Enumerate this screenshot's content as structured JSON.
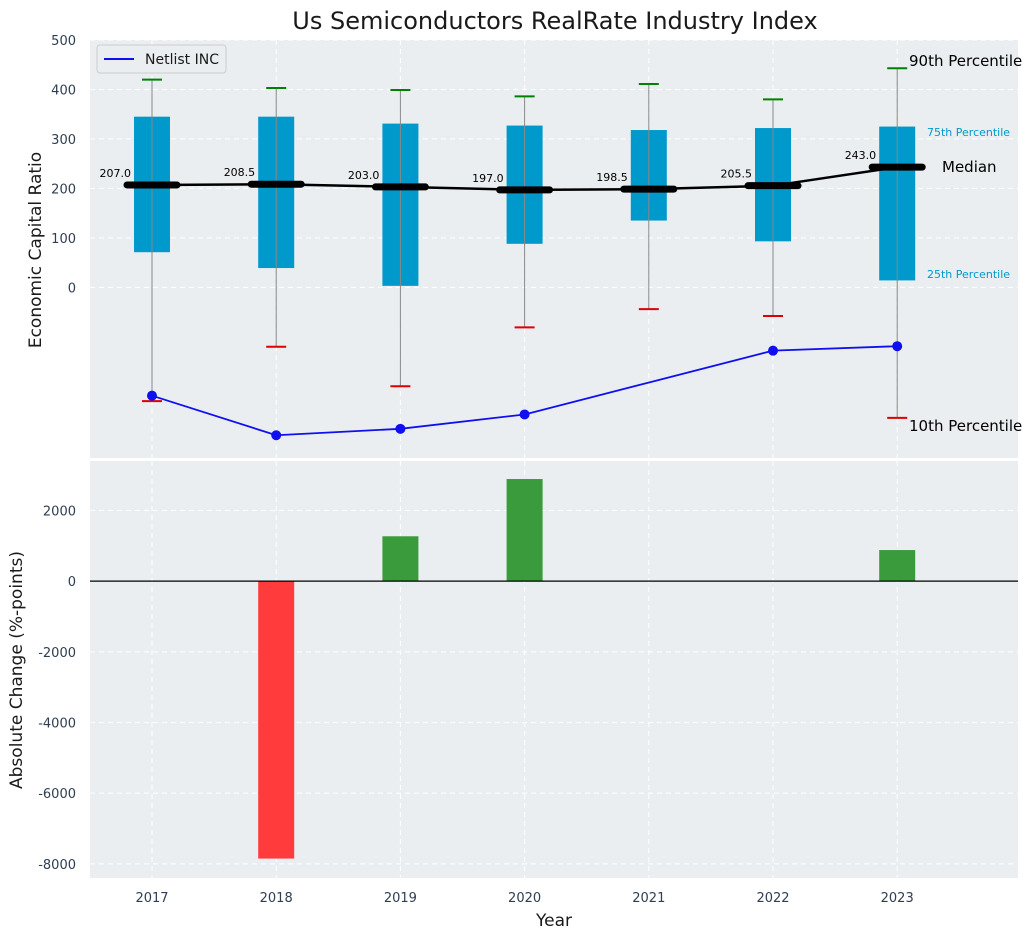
{
  "chart_data": [
    {
      "type": "box",
      "title": "Us Semiconductors RealRate Industry Index",
      "ylabel": "Economic Capital Ratio",
      "xlabel": "",
      "categories": [
        "2017",
        "2018",
        "2019",
        "2020",
        "2021",
        "2022",
        "2023"
      ],
      "ylim": [
        -345,
        500
      ],
      "yticks": [
        0,
        100,
        200,
        300,
        400,
        500
      ],
      "grid": true,
      "legend": {
        "position": "top-left",
        "entries": [
          "Netlist INC"
        ]
      },
      "percentiles": {
        "p10": [
          -230,
          -120,
          -200,
          -81,
          -44,
          -58,
          -264
        ],
        "p25": [
          71,
          39,
          3,
          88,
          135,
          93,
          14
        ],
        "median": [
          207.0,
          208.5,
          203.0,
          197.0,
          198.5,
          205.5,
          243.0
        ],
        "p75": [
          345,
          345,
          331,
          327,
          318,
          322,
          325
        ],
        "p90": [
          420,
          403,
          399,
          386,
          411,
          380,
          443
        ]
      },
      "median_labels": [
        "207.0",
        "208.5",
        "203.0",
        "197.0",
        "198.5",
        "205.5",
        "243.0"
      ],
      "series": [
        {
          "name": "Netlist INC",
          "color": "#1010ee",
          "x": [
            "2017",
            "2018",
            "2019",
            "2020",
            "2022",
            "2023"
          ],
          "values": [
            -219,
            -299,
            -286,
            -257,
            -128,
            -119
          ]
        }
      ],
      "annotations": {
        "p90": "90th Percentile",
        "p75": "75th Percentile",
        "median": "Median",
        "p25": "25th Percentile",
        "p10": "10th Percentile"
      }
    },
    {
      "type": "bar",
      "xlabel": "Year",
      "ylabel": "Absolute Change (%-points)",
      "categories": [
        "2017",
        "2018",
        "2019",
        "2020",
        "2021",
        "2022",
        "2023"
      ],
      "values": [
        null,
        -7850,
        1270,
        2890,
        null,
        null,
        880
      ],
      "ylim": [
        -8400,
        3400
      ],
      "yticks": [
        -8000,
        -6000,
        -4000,
        -2000,
        0,
        2000
      ],
      "grid": true
    }
  ],
  "colors": {
    "box": "#0099cc",
    "median": "#000000",
    "whisker": "#888888",
    "p90_cap": "#008000",
    "p10_cap": "#dd0000",
    "series": "#1010ee",
    "bar_positive": "#3a9b3c",
    "bar_negative": "#ff3b3b",
    "plot_bg": "#eaeef0",
    "annot_blue": "#0099cc"
  }
}
